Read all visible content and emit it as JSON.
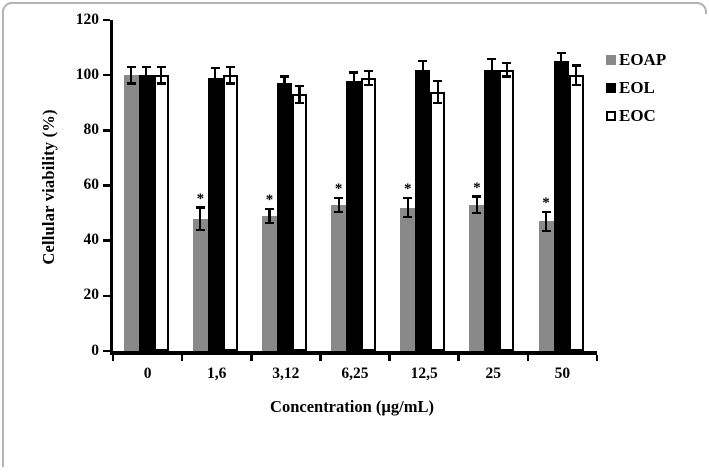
{
  "figure": {
    "background_color": "#ffffff",
    "frame_color": "#b4b4b4",
    "axis_color": "#000000",
    "significance_symbol": "*"
  },
  "chart_data": {
    "type": "bar",
    "title": "",
    "xlabel": "Concentration (µg/mL)",
    "ylabel": "Cellular viability (%)",
    "ylim": [
      0,
      120
    ],
    "yticks": [
      0,
      20,
      40,
      60,
      80,
      100,
      120
    ],
    "categories": [
      "0",
      "1,6",
      "3,12",
      "6,25",
      "12,5",
      "25",
      "50"
    ],
    "grid": false,
    "legend_position": "right",
    "series": [
      {
        "name": "EOAP",
        "color": "#898989",
        "border_color": "",
        "values": [
          100,
          48,
          49,
          53,
          52,
          53,
          47
        ],
        "errors": [
          3,
          4,
          2.5,
          2.5,
          3.5,
          3,
          3.5
        ],
        "significance": [
          "",
          "*",
          "*",
          "*",
          "*",
          "*",
          "*"
        ]
      },
      {
        "name": "EOL",
        "color": "#000000",
        "border_color": "",
        "values": [
          100,
          99,
          97,
          98,
          102,
          102,
          105
        ],
        "errors": [
          3,
          3.5,
          2.5,
          3,
          3,
          4,
          3
        ],
        "significance": [
          "",
          "",
          "",
          "",
          "",
          "",
          ""
        ]
      },
      {
        "name": "EOC",
        "color": "#ffffff",
        "border_color": "#000000",
        "values": [
          100,
          100,
          93,
          99,
          94,
          102,
          100
        ],
        "errors": [
          3,
          3,
          3,
          2.5,
          4,
          2.5,
          3.5
        ],
        "significance": [
          "",
          "",
          "",
          "",
          "",
          "",
          ""
        ]
      }
    ]
  }
}
